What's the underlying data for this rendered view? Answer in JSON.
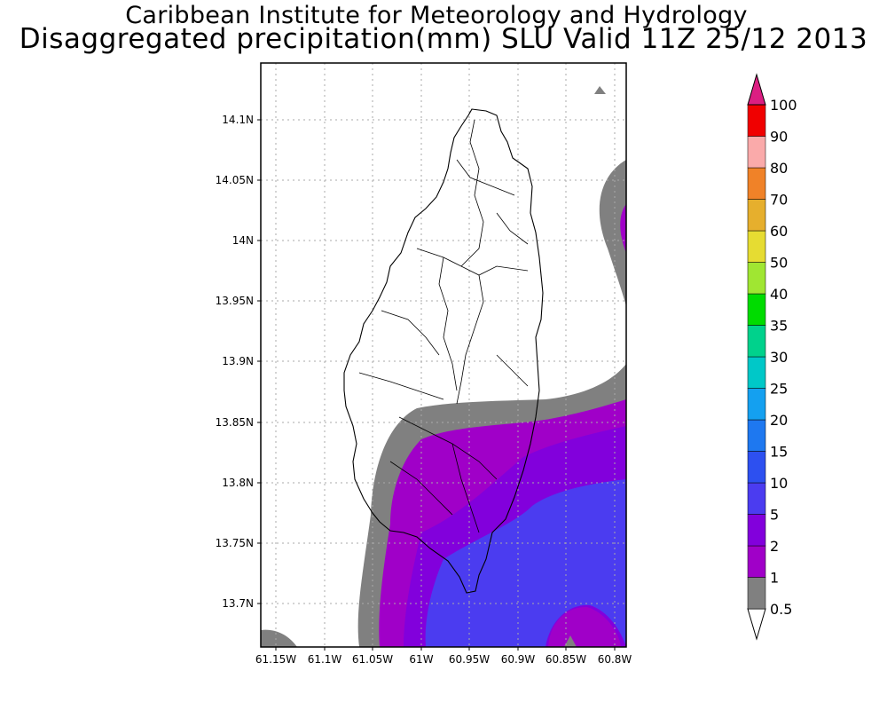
{
  "header": {
    "institute": "Caribbean Institute for Meteorology and Hydrology",
    "product": "Disaggregated precipitation(mm) SLU Valid 11Z 25/12 2013"
  },
  "map": {
    "lat_ticks": [
      "14.1N",
      "14.05N",
      "14N",
      "13.95N",
      "13.9N",
      "13.85N",
      "13.8N",
      "13.75N",
      "13.7N"
    ],
    "lon_ticks": [
      "61.15W",
      "61.1W",
      "61.05W",
      "61W",
      "60.95W",
      "60.9W",
      "60.85W",
      "60.8W"
    ]
  },
  "colorbar": {
    "levels": [
      {
        "label": "0.5",
        "color": "#808080"
      },
      {
        "label": "1",
        "color": "#a000c8"
      },
      {
        "label": "2",
        "color": "#8200dc"
      },
      {
        "label": "5",
        "color": "#4b3cf0"
      },
      {
        "label": "10",
        "color": "#2d50f0"
      },
      {
        "label": "15",
        "color": "#1e78f0"
      },
      {
        "label": "20",
        "color": "#14a0f0"
      },
      {
        "label": "25",
        "color": "#00c8c8"
      },
      {
        "label": "30",
        "color": "#00d28c"
      },
      {
        "label": "35",
        "color": "#00dc00"
      },
      {
        "label": "40",
        "color": "#a0e632"
      },
      {
        "label": "50",
        "color": "#e6dc32"
      },
      {
        "label": "60",
        "color": "#e6af2d"
      },
      {
        "label": "70",
        "color": "#f08228"
      },
      {
        "label": "80",
        "color": "#faaaaa"
      },
      {
        "label": "90",
        "color": "#f00000"
      },
      {
        "label": "100",
        "color": "#f03c3c"
      }
    ],
    "top_color": "#dc1e82"
  }
}
